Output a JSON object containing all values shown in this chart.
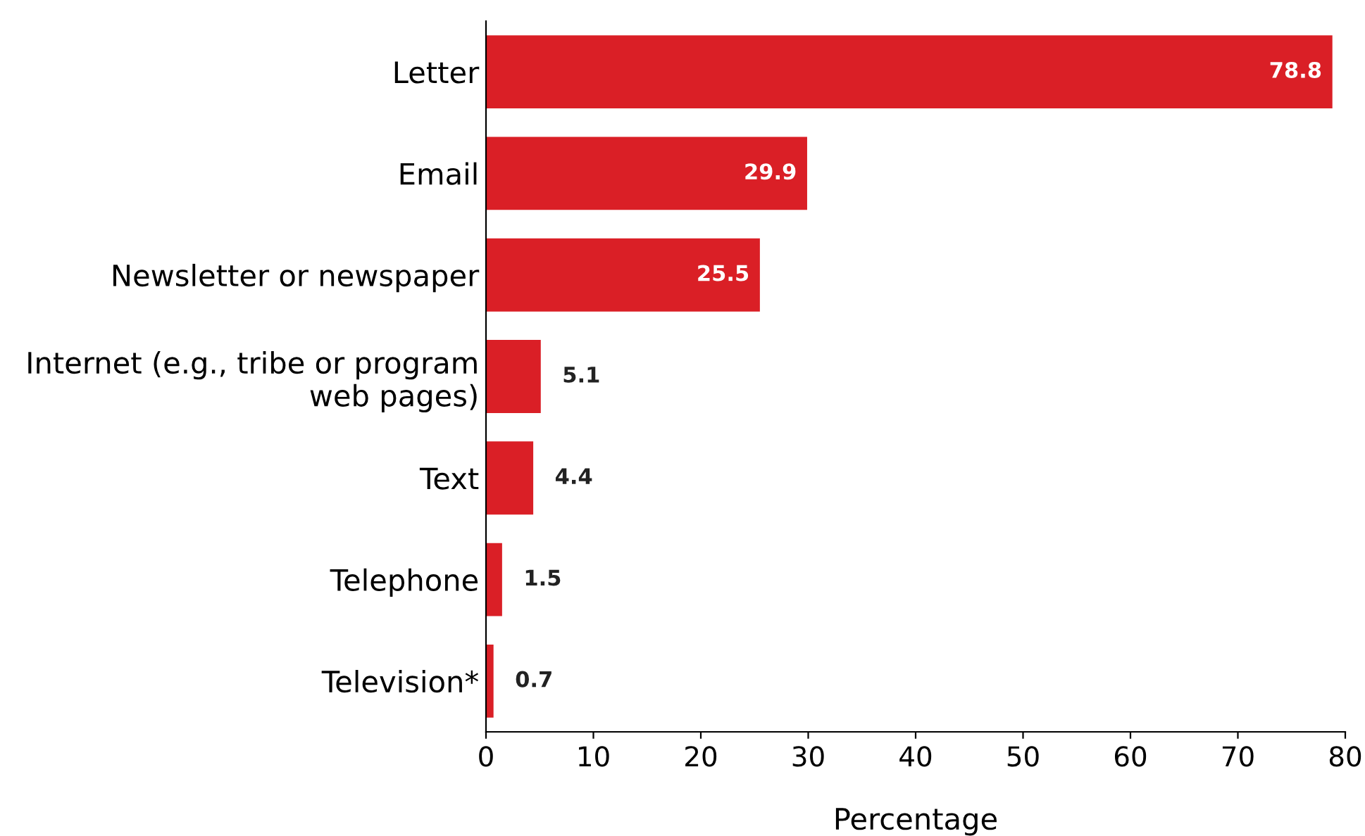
{
  "chart_data": {
    "type": "bar",
    "orientation": "horizontal",
    "xlabel": "Percentage",
    "categories": [
      "Letter",
      "Email",
      "Newsletter or newspaper",
      "Internet (e.g., tribe or program\nweb pages)",
      "Text",
      "Telephone",
      "Television*"
    ],
    "values": [
      78.8,
      29.9,
      25.5,
      5.1,
      4.4,
      1.5,
      0.7
    ],
    "color": "#da1f26",
    "xlim": [
      0,
      80
    ],
    "xticks": [
      0,
      10,
      20,
      30,
      40,
      50,
      60,
      70,
      80
    ],
    "data_labels": true,
    "grid": false
  }
}
